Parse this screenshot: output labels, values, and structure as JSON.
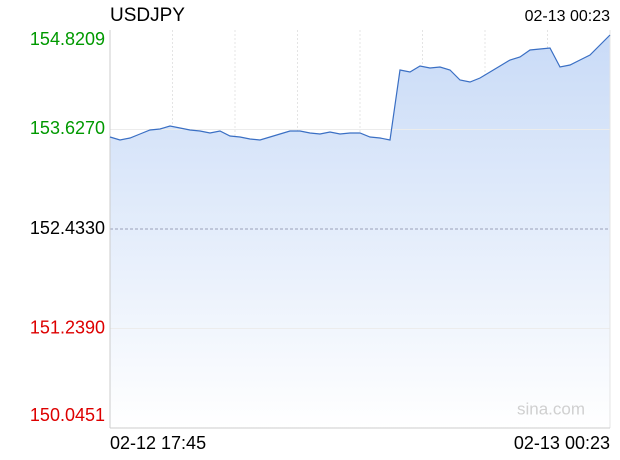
{
  "chart_data": {
    "type": "area",
    "title": "USDJPY",
    "time": "02-13 00:23",
    "watermark": "sina.com",
    "categories": [
      "02-12 17:45",
      null,
      null,
      null,
      null,
      null,
      null,
      null,
      null,
      null,
      null,
      null,
      null,
      null,
      null,
      null,
      null,
      null,
      null,
      null,
      null,
      null,
      null,
      null,
      null,
      null,
      null,
      null,
      null,
      null,
      null,
      null,
      null,
      null,
      null,
      null,
      null,
      null,
      null,
      null,
      null,
      null,
      null,
      null,
      null,
      null,
      null,
      null,
      null,
      null,
      "02-13 00:23"
    ],
    "values": [
      153.537,
      153.501,
      153.525,
      153.573,
      153.621,
      153.633,
      153.669,
      153.645,
      153.621,
      153.609,
      153.585,
      153.609,
      153.549,
      153.537,
      153.513,
      153.501,
      153.537,
      153.573,
      153.609,
      153.609,
      153.585,
      153.573,
      153.597,
      153.573,
      153.585,
      153.585,
      153.537,
      153.525,
      153.501,
      154.341,
      154.317,
      154.389,
      154.365,
      154.377,
      154.341,
      154.221,
      154.197,
      154.245,
      154.317,
      154.389,
      154.461,
      154.497,
      154.581,
      154.593,
      154.605,
      154.377,
      154.401,
      154.461,
      154.521,
      154.641,
      154.761
    ],
    "color": "#3a6fc4",
    "ylim": [
      150.0451,
      154.8209
    ],
    "yticks": [
      {
        "value": 150.0451,
        "label": "150.0451"
      },
      {
        "value": 151.239,
        "label": "151.2390"
      },
      {
        "value": 152.433,
        "label": "152.4330"
      },
      {
        "value": 153.627,
        "label": "153.6270"
      },
      {
        "value": 154.8209,
        "label": "154.8209"
      }
    ],
    "up_color": "#009900",
    "down_color": "#dd0000",
    "flat_color": "#000000",
    "grid": true
  }
}
